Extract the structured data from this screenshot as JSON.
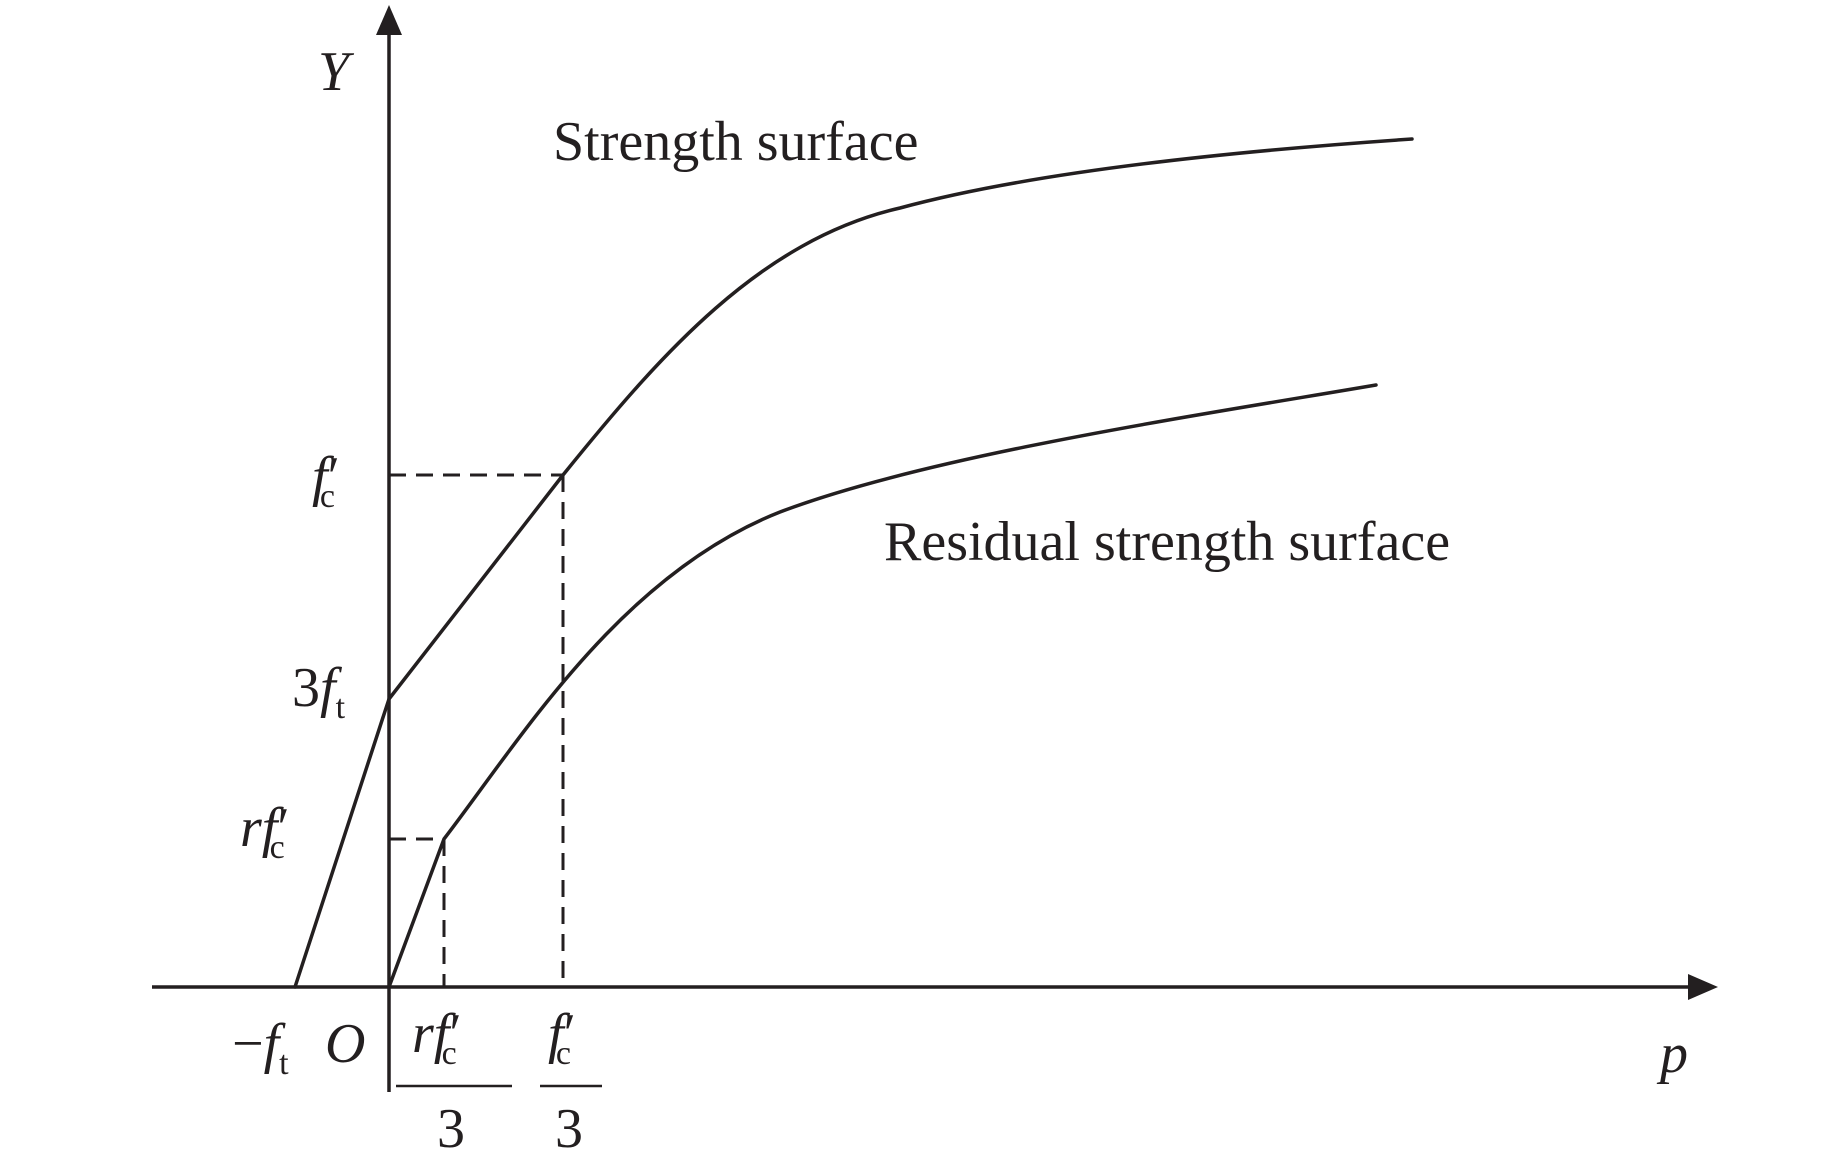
{
  "labels": {
    "y_axis": "Y",
    "x_axis": "p",
    "origin": "O",
    "strength_curve": "Strength surface",
    "residual_curve": "Residual strength surface"
  },
  "y_ticks": {
    "fc": {
      "main": "f",
      "prime": "′",
      "sub": "c"
    },
    "three_ft": {
      "coef": "3",
      "main": "f",
      "sub": "t"
    },
    "rfc": {
      "coef": "r",
      "main": "f",
      "prime": "′",
      "sub": "c"
    }
  },
  "x_ticks": {
    "neg_ft": {
      "sign": "−",
      "main": "f",
      "sub": "t"
    },
    "rfc_over_3": {
      "coef": "r",
      "main": "f",
      "prime": "′",
      "sub": "c",
      "denominator": "3"
    },
    "fc_over_3": {
      "main": "f",
      "prime": "′",
      "sub": "c",
      "denominator": "3"
    }
  }
}
